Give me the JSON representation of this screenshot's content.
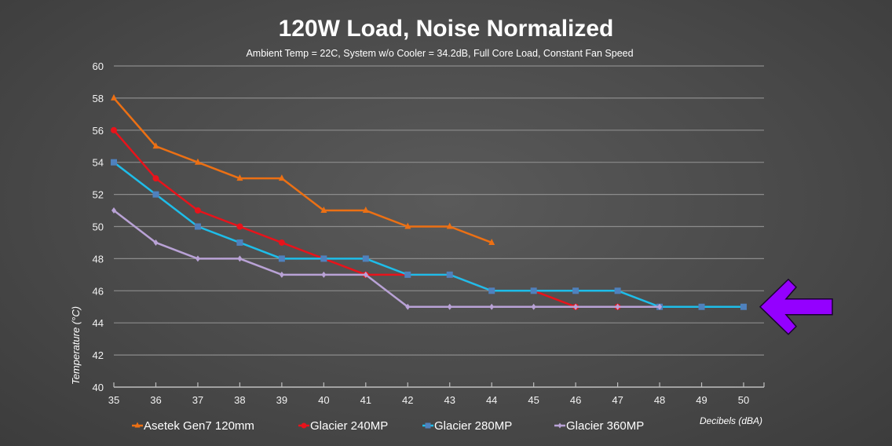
{
  "chart_data": {
    "type": "line",
    "title": "120W Load, Noise Normalized",
    "subtitle": "Ambient Temp = 22C, System w/o Cooler = 34.2dB, Full Core Load, Constant Fan Speed",
    "xlabel": "Decibels (dBA)",
    "ylabel": "Temperature (°C)",
    "xlim": [
      35,
      50
    ],
    "ylim": [
      40,
      60
    ],
    "x_ticks": [
      35,
      36,
      37,
      38,
      39,
      40,
      41,
      42,
      43,
      44,
      45,
      46,
      47,
      48,
      49,
      50
    ],
    "y_ticks": [
      40,
      42,
      44,
      46,
      48,
      50,
      52,
      54,
      56,
      58,
      60
    ],
    "grid": true,
    "legend_position": "bottom",
    "series": [
      {
        "name": "Asetek Gen7 120mm",
        "color": "#ec7014",
        "marker": "triangle",
        "x": [
          35,
          36,
          37,
          38,
          39,
          40,
          41,
          42,
          43,
          44
        ],
        "values": [
          58,
          55,
          54,
          53,
          53,
          51,
          51,
          50,
          50,
          49
        ]
      },
      {
        "name": "Glacier 240MP",
        "color": "#e8131b",
        "marker": "circle",
        "x": [
          35,
          36,
          37,
          38,
          39,
          40,
          41,
          42,
          43,
          44,
          45,
          46,
          47
        ],
        "values": [
          56,
          53,
          51,
          50,
          49,
          48,
          47,
          47,
          47,
          46,
          46,
          45,
          45
        ]
      },
      {
        "name": "Glacier 280MP",
        "color": "#1ebde9",
        "marker": "square",
        "marker_color": "#4f81bd",
        "x": [
          35,
          36,
          37,
          38,
          39,
          40,
          41,
          42,
          43,
          44,
          45,
          46,
          47,
          48,
          49,
          50
        ],
        "values": [
          54,
          52,
          50,
          49,
          48,
          48,
          48,
          47,
          47,
          46,
          46,
          46,
          46,
          45,
          45,
          45
        ]
      },
      {
        "name": "Glacier 360MP",
        "color": "#b9a2d6",
        "marker": "diamond",
        "x": [
          35,
          36,
          37,
          38,
          39,
          40,
          41,
          42,
          43,
          44,
          45,
          46,
          47,
          48
        ],
        "values": [
          51,
          49,
          48,
          48,
          47,
          47,
          47,
          45,
          45,
          45,
          45,
          45,
          45,
          45
        ]
      }
    ],
    "annotations": [
      {
        "type": "arrow",
        "direction": "left",
        "color": "#9400ff",
        "points_to_y": 45
      }
    ]
  }
}
